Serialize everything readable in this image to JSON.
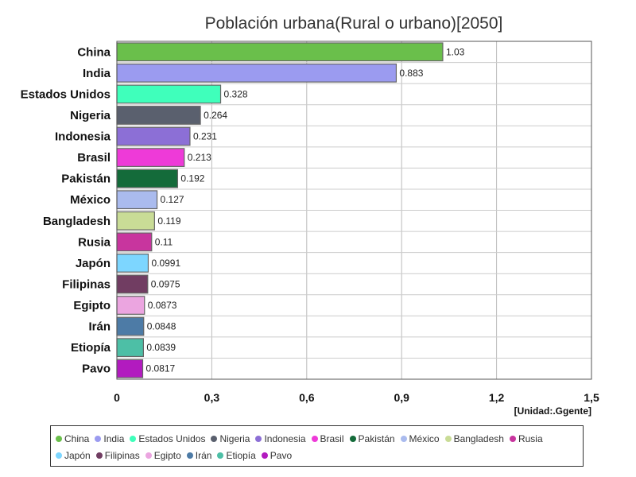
{
  "chart_data": {
    "type": "bar",
    "orientation": "horizontal",
    "title": "Población urbana(Rural o urbano)[2050]",
    "unit_label": "[Unidad:.Ggente]",
    "xlim": [
      0,
      1.5
    ],
    "x_ticks": [
      "0",
      "0,3",
      "0,6",
      "0,9",
      "1,2",
      "1,5"
    ],
    "x_tick_values": [
      0,
      0.3,
      0.6,
      0.9,
      1.2,
      1.5
    ],
    "grid": true,
    "legend_position": "bottom",
    "categories": [
      "China",
      "India",
      "Estados Unidos",
      "Nigeria",
      "Indonesia",
      "Brasil",
      "Pakistán",
      "México",
      "Bangladesh",
      "Rusia",
      "Japón",
      "Filipinas",
      "Egipto",
      "Irán",
      "Etiopía",
      "Pavo"
    ],
    "values": [
      1.03,
      0.883,
      0.328,
      0.264,
      0.231,
      0.213,
      0.192,
      0.127,
      0.119,
      0.11,
      0.0991,
      0.0975,
      0.0873,
      0.0848,
      0.0839,
      0.0817
    ],
    "value_labels": [
      "1.03",
      "0.883",
      "0.328",
      "0.264",
      "0.231",
      "0.213",
      "0.192",
      "0.127",
      "0.119",
      "0.11",
      "0.0991",
      "0.0975",
      "0.0873",
      "0.0848",
      "0.0839",
      "0.0817"
    ],
    "colors": [
      "#6abf4b",
      "#9b9bf0",
      "#3fffbb",
      "#5a606e",
      "#8c6fd6",
      "#ee3ad8",
      "#146b3a",
      "#aabbee",
      "#c9dc96",
      "#c8359e",
      "#7dd6ff",
      "#713d62",
      "#eba5e0",
      "#4d7ba6",
      "#4dbfa6",
      "#b21bbf"
    ]
  }
}
